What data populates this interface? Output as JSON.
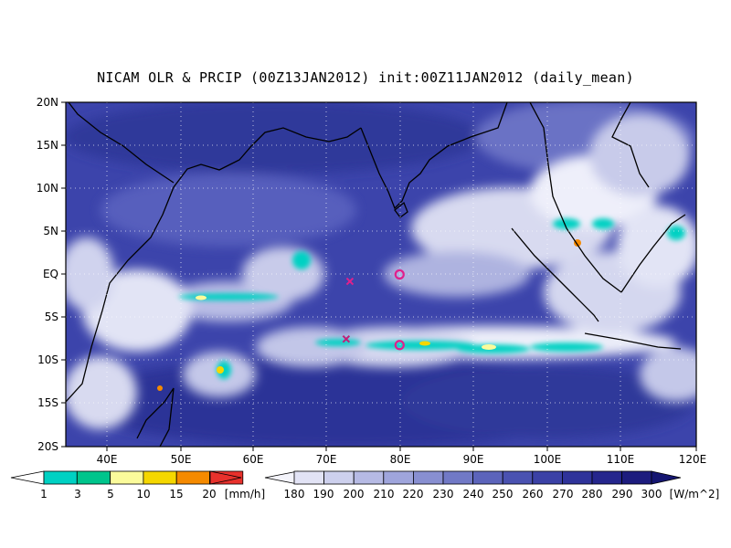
{
  "title": "NICAM OLR & PRCIP (00Z13JAN2012) init:00Z11JAN2012 (daily_mean)",
  "map": {
    "lon_range": [
      35,
      120
    ],
    "lat_range": [
      -20,
      20
    ],
    "lon_ticks": [
      "40E",
      "50E",
      "60E",
      "70E",
      "80E",
      "90E",
      "100E",
      "110E",
      "120E"
    ],
    "lat_ticks": [
      "20N",
      "15N",
      "10N",
      "5N",
      "EQ",
      "5S",
      "10S",
      "15S",
      "20S"
    ],
    "gridlines": "dotted",
    "coastlines": true,
    "markers": [
      {
        "type": "cross",
        "lon": 73.3,
        "lat": -0.8,
        "color": "#e0208c"
      },
      {
        "type": "cross",
        "lon": 72.8,
        "lat": -7.5,
        "color": "#c0207a"
      },
      {
        "type": "circle",
        "lon": 80.0,
        "lat": 0.0,
        "color": "#e0208c"
      },
      {
        "type": "circle",
        "lon": 80.0,
        "lat": -8.2,
        "color": "#e0208c"
      }
    ]
  },
  "precip_scale": {
    "labels": [
      "1",
      "3",
      "5",
      "10",
      "15",
      "20"
    ],
    "unit": "[mm/h]",
    "colors": [
      "#00d1c3",
      "#00c58c",
      "#fbfb9b",
      "#f5d700",
      "#f58a00",
      "#e8312c"
    ]
  },
  "olr_scale": {
    "labels": [
      "180",
      "190",
      "200",
      "210",
      "220",
      "230",
      "240",
      "250",
      "260",
      "270",
      "280",
      "290",
      "300"
    ],
    "unit": "[W/m^2]",
    "colors": [
      "#f4f4fb",
      "#e2e3f5",
      "#cdd0ed",
      "#b6bae4",
      "#9fa5dc",
      "#888fd1",
      "#7179c6",
      "#5c64bb",
      "#4a52b1",
      "#3b41a6",
      "#2f339a",
      "#25268d",
      "#1d1c7e",
      "#151671"
    ]
  },
  "colors": {
    "ocean_bg": "#3c44ab",
    "land_bg": "#3038a0",
    "cloud_white": "#f2f2fa"
  }
}
